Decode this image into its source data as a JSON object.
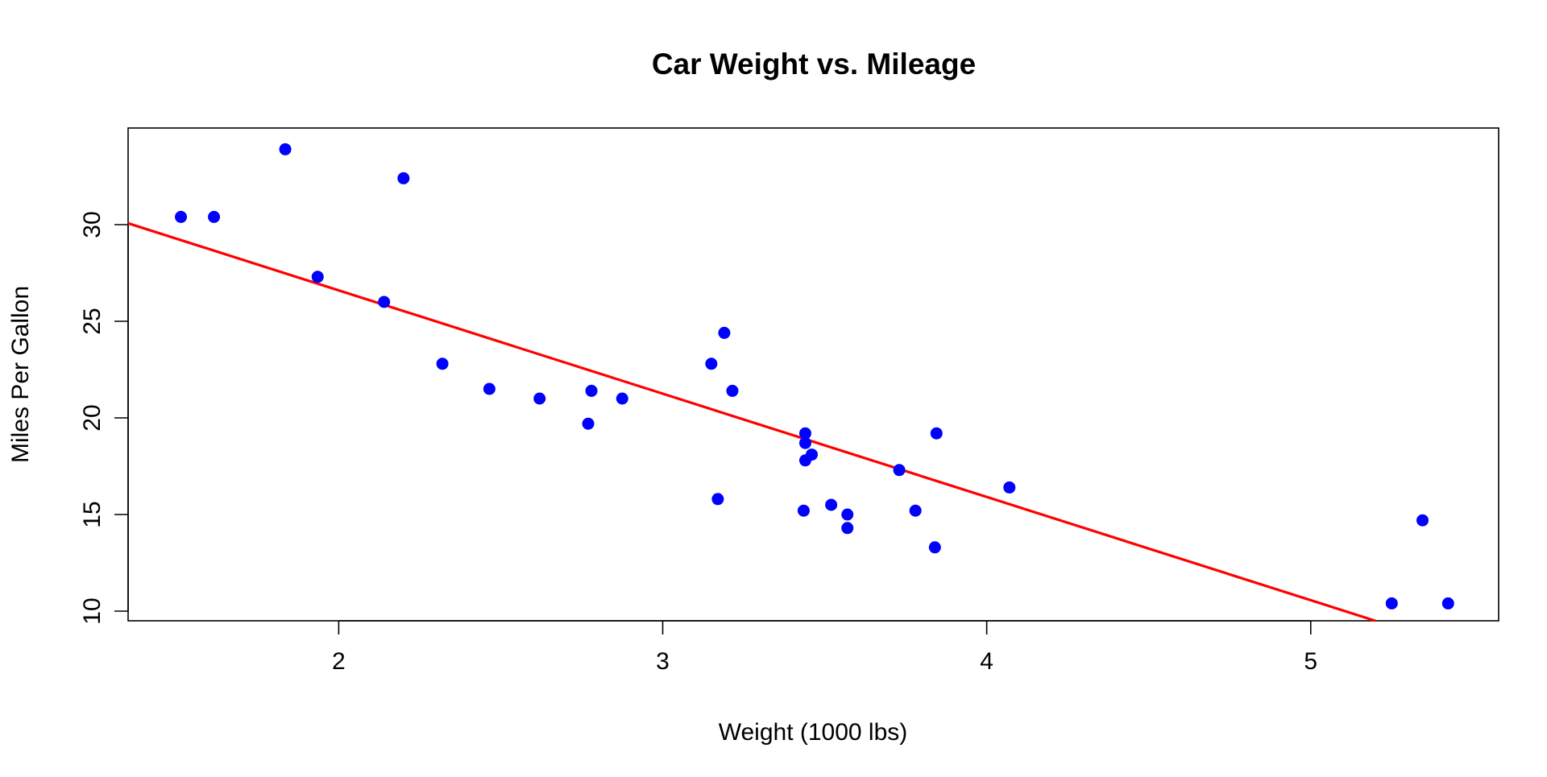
{
  "chart_data": {
    "type": "scatter",
    "title": "Car Weight vs. Mileage",
    "xlabel": "Weight (1000 lbs)",
    "ylabel": "Miles Per Gallon",
    "xlim": [
      1.35,
      5.58
    ],
    "ylim": [
      9.5,
      35.0
    ],
    "xticks": [
      2,
      3,
      4,
      5
    ],
    "yticks": [
      10,
      15,
      20,
      25,
      30
    ],
    "grid": false,
    "legend": "none",
    "series": [
      {
        "color": "#0000ff",
        "points": [
          {
            "x": 2.62,
            "y": 21.0
          },
          {
            "x": 2.875,
            "y": 21.0
          },
          {
            "x": 2.32,
            "y": 22.8
          },
          {
            "x": 3.215,
            "y": 21.4
          },
          {
            "x": 3.44,
            "y": 18.7
          },
          {
            "x": 3.46,
            "y": 18.1
          },
          {
            "x": 3.57,
            "y": 14.3
          },
          {
            "x": 3.19,
            "y": 24.4
          },
          {
            "x": 3.15,
            "y": 22.8
          },
          {
            "x": 3.44,
            "y": 19.2
          },
          {
            "x": 3.44,
            "y": 17.8
          },
          {
            "x": 4.07,
            "y": 16.4
          },
          {
            "x": 3.73,
            "y": 17.3
          },
          {
            "x": 3.78,
            "y": 15.2
          },
          {
            "x": 5.25,
            "y": 10.4
          },
          {
            "x": 5.424,
            "y": 10.4
          },
          {
            "x": 5.345,
            "y": 14.7
          },
          {
            "x": 2.2,
            "y": 32.4
          },
          {
            "x": 1.615,
            "y": 30.4
          },
          {
            "x": 1.835,
            "y": 33.9
          },
          {
            "x": 2.465,
            "y": 21.5
          },
          {
            "x": 3.52,
            "y": 15.5
          },
          {
            "x": 3.435,
            "y": 15.2
          },
          {
            "x": 3.84,
            "y": 13.3
          },
          {
            "x": 3.845,
            "y": 19.2
          },
          {
            "x": 1.935,
            "y": 27.3
          },
          {
            "x": 2.14,
            "y": 26.0
          },
          {
            "x": 1.513,
            "y": 30.4
          },
          {
            "x": 3.17,
            "y": 15.8
          },
          {
            "x": 2.77,
            "y": 19.7
          },
          {
            "x": 3.57,
            "y": 15.0
          },
          {
            "x": 2.78,
            "y": 21.4
          }
        ]
      }
    ],
    "regression_line": {
      "color": "#ff0000",
      "intercept": 37.285,
      "slope": -5.344
    }
  }
}
